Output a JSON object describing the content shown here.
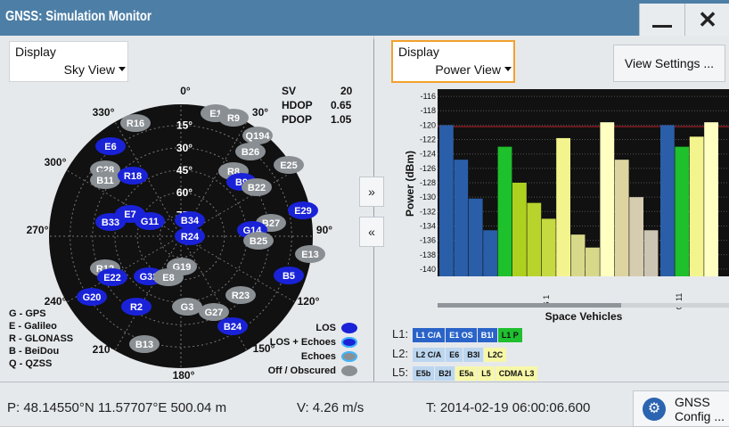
{
  "window": {
    "title": "GNSS: Simulation Monitor"
  },
  "left_display": {
    "label": "Display",
    "value": "Sky View"
  },
  "right_display": {
    "label": "Display",
    "value": "Power View"
  },
  "view_settings_label": "View Settings ...",
  "dop": {
    "sv_label": "SV",
    "sv": "20",
    "hdop_label": "HDOP",
    "hdop": "0.65",
    "pdop_label": "PDOP",
    "pdop": "1.05"
  },
  "sky": {
    "azimuth_labels": [
      "0°",
      "30°",
      "90°",
      "120°",
      "150°",
      "180°",
      "210°",
      "240°",
      "270°",
      "300°",
      "330°"
    ],
    "elevation_labels": [
      "15°",
      "30°",
      "45°",
      "60°",
      "75°"
    ],
    "satellites": [
      {
        "id": "R16",
        "color": "gray"
      },
      {
        "id": "E1",
        "color": "gray"
      },
      {
        "id": "R9",
        "color": "gray"
      },
      {
        "id": "Q194",
        "color": "gray"
      },
      {
        "id": "B26",
        "color": "gray"
      },
      {
        "id": "E6",
        "color": "blue"
      },
      {
        "id": "C28",
        "color": "gray"
      },
      {
        "id": "B11",
        "color": "gray"
      },
      {
        "id": "R18",
        "color": "blue"
      },
      {
        "id": "R8",
        "color": "gray"
      },
      {
        "id": "E25",
        "color": "gray"
      },
      {
        "id": "B9",
        "color": "blue"
      },
      {
        "id": "B22",
        "color": "gray"
      },
      {
        "id": "B33",
        "color": "blue"
      },
      {
        "id": "E7",
        "color": "blue"
      },
      {
        "id": "G11",
        "color": "blue"
      },
      {
        "id": "B34",
        "color": "blue"
      },
      {
        "id": "R24",
        "color": "blue"
      },
      {
        "id": "E29",
        "color": "blue"
      },
      {
        "id": "B27",
        "color": "gray"
      },
      {
        "id": "G14",
        "color": "blue"
      },
      {
        "id": "B25",
        "color": "gray"
      },
      {
        "id": "E13",
        "color": "gray"
      },
      {
        "id": "R12",
        "color": "gray"
      },
      {
        "id": "G19",
        "color": "gray"
      },
      {
        "id": "E22",
        "color": "blue"
      },
      {
        "id": "G32",
        "color": "blue"
      },
      {
        "id": "E8",
        "color": "gray"
      },
      {
        "id": "B5",
        "color": "blue"
      },
      {
        "id": "G20",
        "color": "blue"
      },
      {
        "id": "R23",
        "color": "gray"
      },
      {
        "id": "R2",
        "color": "blue"
      },
      {
        "id": "G3",
        "color": "gray"
      },
      {
        "id": "G27",
        "color": "gray"
      },
      {
        "id": "B24",
        "color": "blue"
      },
      {
        "id": "B13",
        "color": "gray"
      }
    ]
  },
  "constellation_key": [
    "G - GPS",
    "E - Galileo",
    "R - GLONASS",
    "B - BeiDou",
    "Q - QZSS"
  ],
  "los_legend": [
    {
      "label": "LOS",
      "color": "#1a22d8"
    },
    {
      "label": "LOS + Echoes",
      "color": "#1a22d8"
    },
    {
      "label": "Echoes",
      "color": "#8a8f94"
    },
    {
      "label": "Off / Obscured",
      "color": "#8a8f94"
    }
  ],
  "nav_buttons": {
    "forward": "»",
    "back": "«"
  },
  "chart_data": {
    "type": "bar",
    "ylabel": "Power (dBm)",
    "xlabel": "Space Vehicles",
    "ylim": [
      -141,
      -115
    ],
    "yticks": [
      -116,
      -118,
      -120,
      -122,
      -124,
      -126,
      -128,
      -130,
      -132,
      -134,
      -136,
      -138,
      -140
    ],
    "reference_line": -120.2,
    "groups": [
      {
        "label": "G 1",
        "bars": [
          {
            "value": -120.0,
            "color": "#2a5ea8"
          },
          {
            "value": -124.8,
            "color": "#2a5ea8"
          },
          {
            "value": -130.2,
            "color": "#2a5ea8"
          },
          {
            "value": -134.6,
            "color": "#2a5ea8"
          },
          {
            "value": -123.0,
            "color": "#1ec02c"
          },
          {
            "value": -128.0,
            "color": "#aed11f"
          },
          {
            "value": -130.8,
            "color": "#b8d42c"
          },
          {
            "value": -133.0,
            "color": "#c5d940"
          },
          {
            "value": -121.8,
            "color": "#f4f48e"
          },
          {
            "value": -135.2,
            "color": "#d8d88a"
          },
          {
            "value": -137.0,
            "color": "#d8d88a"
          },
          {
            "value": -119.6,
            "color": "#ffffc2"
          },
          {
            "value": -124.8,
            "color": "#ded49f"
          },
          {
            "value": -130.0,
            "color": "#d6ccb0"
          },
          {
            "value": -134.6,
            "color": "#ccc5b3"
          }
        ]
      },
      {
        "label": "G 11",
        "bars": [
          {
            "value": -120.0,
            "color": "#2a5ea8"
          },
          {
            "value": -123.0,
            "color": "#1ec02c"
          },
          {
            "value": -121.6,
            "color": "#f4f48e"
          },
          {
            "value": -119.6,
            "color": "#ffffc2"
          }
        ]
      }
    ]
  },
  "signal_legend": {
    "l1": {
      "label": "L1:",
      "chips": [
        "L1 C/A",
        "E1 OS",
        "B1I",
        "L1 P"
      ]
    },
    "l2": {
      "label": "L2:",
      "chips": [
        "L2 C/A",
        "E6",
        "B3I",
        "L2C"
      ]
    },
    "l5": {
      "label": "L5:",
      "chips": [
        "E5b",
        "B2I",
        "E5a",
        "L5",
        "CDMA L3"
      ]
    }
  },
  "status": {
    "position": "P: 48.14550°N 11.57707°E 500.04 m",
    "velocity": "V: 4.26 m/s",
    "time": "T: 2014-02-19 06:00:06.600"
  },
  "gnss_config": {
    "line1": "GNSS",
    "line2": "Config ..."
  }
}
